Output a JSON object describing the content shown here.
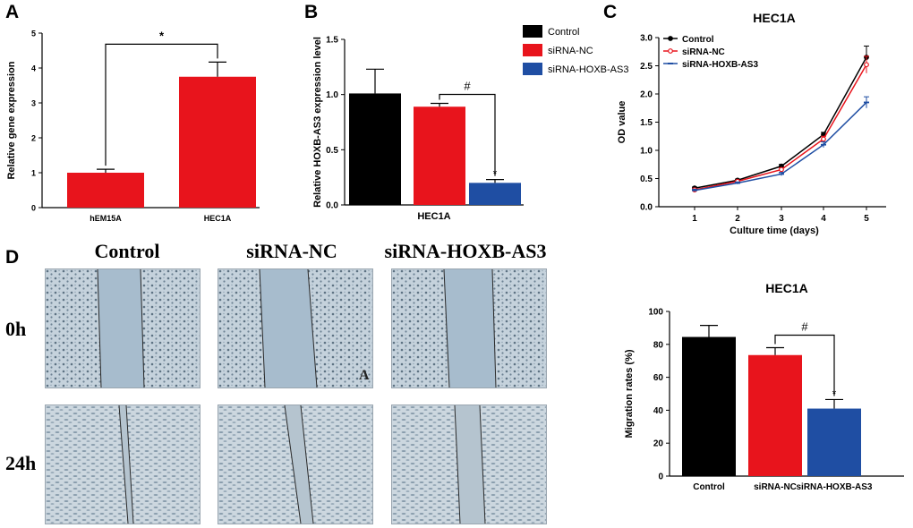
{
  "panels": {
    "a": "A",
    "b": "B",
    "c": "C",
    "d": "D"
  },
  "colors": {
    "red": "#e8141c",
    "black": "#000000",
    "blue": "#1f4ea3",
    "control_line": "#000000",
    "nc_line": "#e8141c",
    "as3_line": "#1f4ea3"
  },
  "chart_data": [
    {
      "id": "A",
      "type": "bar",
      "title": "",
      "xlabel": "",
      "ylabel": "Relative gene expression",
      "categories": [
        "hEM15A",
        "HEC1A"
      ],
      "values": [
        1.0,
        3.75
      ],
      "errors": [
        0.1,
        0.42
      ],
      "ylim": [
        0,
        5
      ],
      "yticks": [
        "0",
        "1",
        "2",
        "3",
        "4",
        "5"
      ],
      "annotations": [
        {
          "label": "*",
          "between": [
            "hEM15A",
            "HEC1A"
          ]
        }
      ]
    },
    {
      "id": "B",
      "type": "bar",
      "title": "",
      "xlabel": "HEC1A",
      "ylabel": "Relative HOXB-AS3  expression level",
      "categories": [
        "Control",
        "siRNA-NC",
        "siRNA-HOXB-AS3"
      ],
      "values": [
        1.01,
        0.89,
        0.2
      ],
      "errors": [
        0.22,
        0.03,
        0.03
      ],
      "ylim": [
        0,
        1.5
      ],
      "yticks": [
        "0.0",
        "0.5",
        "1.0",
        "1.5"
      ],
      "legend": [
        "Control",
        "siRNA-NC",
        "siRNA-HOXB-AS3"
      ],
      "annotations": [
        {
          "label": "#",
          "between": [
            "siRNA-NC",
            "siRNA-HOXB-AS3"
          ]
        },
        {
          "label": "*",
          "over": "siRNA-HOXB-AS3"
        }
      ]
    },
    {
      "id": "C",
      "type": "line",
      "title": "HEC1A",
      "xlabel": "Culture time (days)",
      "ylabel": "OD value",
      "x": [
        1,
        2,
        3,
        4,
        5
      ],
      "xticks": [
        "1",
        "2",
        "3",
        "4",
        "5"
      ],
      "ylim": [
        0,
        3.0
      ],
      "yticks": [
        "0.0",
        "0.5",
        "1.0",
        "1.5",
        "2.0",
        "2.5",
        "3.0"
      ],
      "series": [
        {
          "name": "Control",
          "values": [
            0.33,
            0.47,
            0.72,
            1.28,
            2.65
          ],
          "errors": [
            0.02,
            0.02,
            0.03,
            0.04,
            0.2
          ]
        },
        {
          "name": "siRNA-NC",
          "values": [
            0.3,
            0.45,
            0.66,
            1.2,
            2.52
          ],
          "errors": [
            0.02,
            0.02,
            0.03,
            0.05,
            0.15
          ]
        },
        {
          "name": "siRNA-HOXB-AS3",
          "values": [
            0.29,
            0.42,
            0.58,
            1.1,
            1.85
          ],
          "errors": [
            0.02,
            0.02,
            0.03,
            0.05,
            0.1
          ]
        }
      ],
      "legend": [
        "Control",
        "siRNA-NC",
        "siRNA-HOXB-AS3"
      ]
    },
    {
      "id": "E",
      "type": "bar",
      "title": "HEC1A",
      "xlabel": "",
      "ylabel": "Migration rates (%)",
      "categories": [
        "Control",
        "siRNA-NC",
        "siRNA-HOXB-AS3"
      ],
      "values": [
        84.5,
        73.5,
        41.0
      ],
      "errors": [
        7.0,
        4.5,
        5.5
      ],
      "ylim": [
        0,
        100
      ],
      "yticks": [
        "0",
        "20",
        "40",
        "60",
        "80",
        "100"
      ],
      "annotations": [
        {
          "label": "#",
          "between": [
            "siRNA-NC",
            "siRNA-HOXB-AS3"
          ]
        },
        {
          "label": "*",
          "over": "siRNA-HOXB-AS3"
        }
      ]
    }
  ],
  "micrographs": {
    "columns": [
      "Control",
      "siRNA-NC",
      "siRNA-HOXB-AS3"
    ],
    "rows": [
      "0h",
      "24h"
    ],
    "corner_mark": "A"
  }
}
